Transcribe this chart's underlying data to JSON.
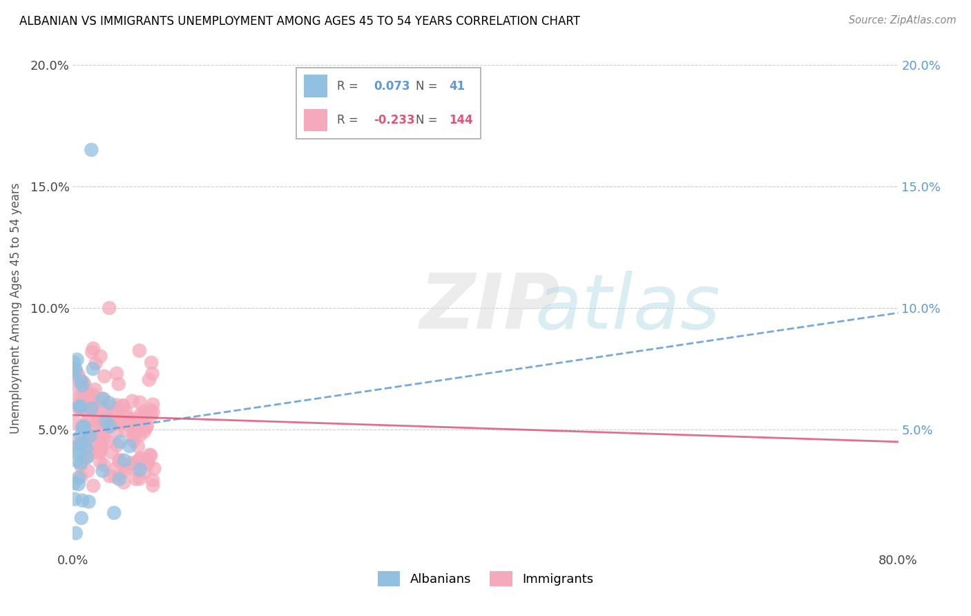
{
  "title": "ALBANIAN VS IMMIGRANTS UNEMPLOYMENT AMONG AGES 45 TO 54 YEARS CORRELATION CHART",
  "source": "Source: ZipAtlas.com",
  "ylabel": "Unemployment Among Ages 45 to 54 years",
  "xlim": [
    0.0,
    0.8
  ],
  "ylim": [
    0.0,
    0.2
  ],
  "albanian_R": 0.073,
  "albanian_N": 41,
  "immigrant_R": -0.233,
  "immigrant_N": 144,
  "albanian_color": "#92C0E0",
  "immigrant_color": "#F5AABB",
  "albanian_trend_color": "#5B9BD5",
  "immigrant_trend_color": "#E05575",
  "alb_trend_start_y": 0.048,
  "alb_trend_end_y": 0.098,
  "imm_trend_start_y": 0.056,
  "imm_trend_end_y": 0.045
}
